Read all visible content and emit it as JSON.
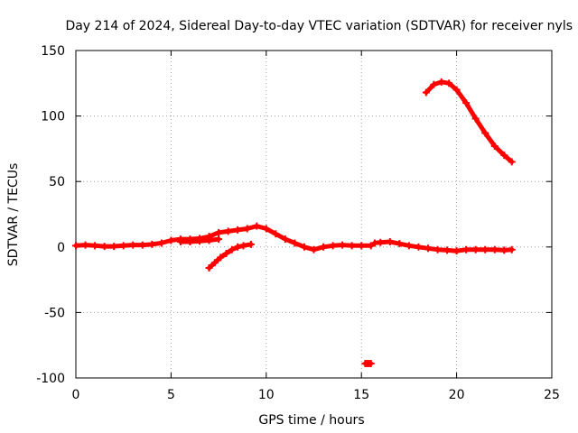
{
  "chart_data": {
    "type": "scatter",
    "title": "Day 214 of 2024, Sidereal Day-to-day VTEC variation (SDTVAR) for receiver nyls",
    "xlabel": "GPS time / hours",
    "ylabel": "SDTVAR / TECUs",
    "xlim": [
      0,
      25
    ],
    "ylim": [
      -100,
      150
    ],
    "xticks": [
      0,
      5,
      10,
      15,
      20,
      25
    ],
    "yticks": [
      -100,
      -50,
      0,
      50,
      100,
      150
    ],
    "grid": true,
    "legend": "none",
    "marker_color": "#ff0000",
    "series": [
      {
        "name": "main-track",
        "x": [
          0,
          0.5,
          1,
          1.5,
          2,
          2.5,
          3,
          3.5,
          4,
          4.5,
          5,
          5.5,
          6,
          6.5,
          7,
          7.5,
          8,
          8.5,
          9,
          9.5,
          10,
          10.5,
          11,
          11.5,
          12,
          12.5,
          13,
          13.5,
          14,
          14.5,
          15,
          15.5,
          15.7,
          16,
          16.5,
          17,
          17.5,
          18,
          18.5,
          19,
          19.5,
          20,
          20.5,
          21,
          21.5,
          22,
          22.5,
          22.9
        ],
        "y": [
          1,
          1.5,
          1,
          0.5,
          0.5,
          1,
          1.5,
          1.5,
          2,
          3,
          5,
          6,
          6,
          6.5,
          8,
          11,
          12,
          13,
          14,
          16,
          14,
          10,
          6,
          3,
          0,
          -2,
          0,
          1,
          1.5,
          1,
          1,
          1,
          3,
          3.5,
          4,
          2.5,
          1,
          0,
          -1,
          -2,
          -2.5,
          -3,
          -2,
          -2,
          -2,
          -2,
          -2.5,
          -2
        ]
      },
      {
        "name": "lower-branch",
        "x": [
          7,
          7.3,
          7.6,
          7.9,
          8.2,
          8.5,
          8.8,
          9.2
        ],
        "y": [
          -16,
          -12,
          -8,
          -5,
          -2,
          0,
          1,
          2
        ]
      },
      {
        "name": "dip-segment",
        "x": [
          5.5,
          6,
          6.5,
          7,
          7.5
        ],
        "y": [
          4,
          4,
          4.5,
          5,
          6
        ]
      },
      {
        "name": "high-arc",
        "x": [
          18.4,
          18.8,
          19.2,
          19.6,
          20,
          20.5,
          21,
          21.5,
          22,
          22.5,
          22.9
        ],
        "y": [
          118,
          124,
          126,
          125,
          120,
          110,
          98,
          87,
          77,
          70,
          65
        ]
      },
      {
        "name": "outlier",
        "x": [
          15.2,
          15.3,
          15.4,
          15.5
        ],
        "y": [
          -89,
          -89,
          -89,
          -89
        ]
      }
    ]
  }
}
